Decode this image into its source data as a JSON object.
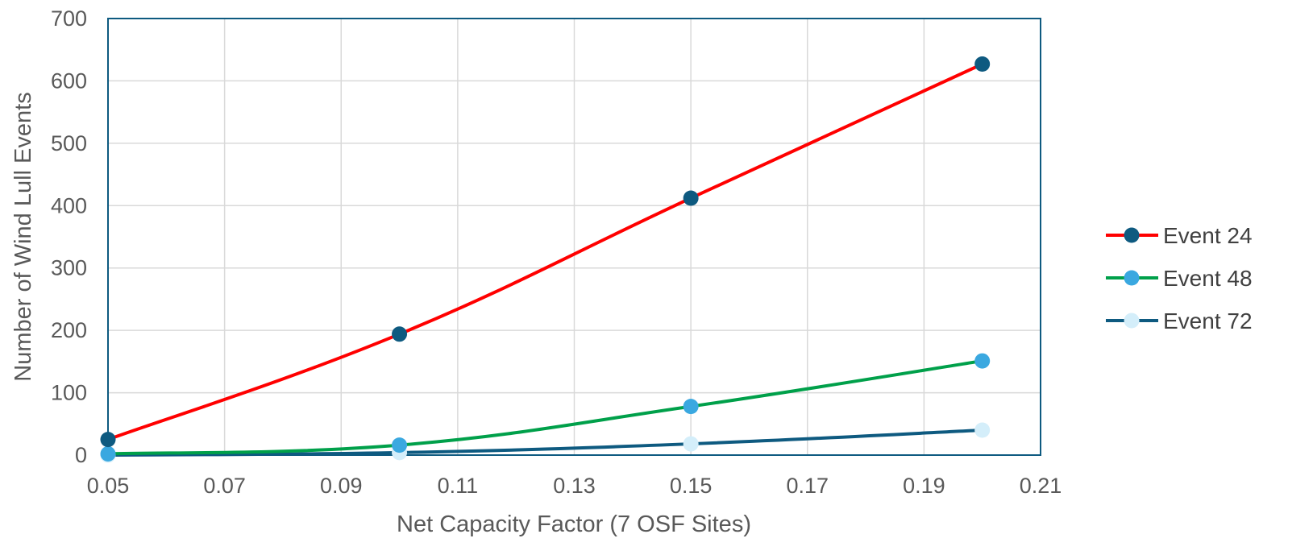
{
  "chart_data": {
    "type": "line",
    "title": "",
    "xlabel": "Net Capacity Factor (7 OSF Sites)",
    "ylabel": "Number of Wind Lull Events",
    "xlim": [
      0.05,
      0.21
    ],
    "ylim": [
      0,
      700
    ],
    "x_ticks": [
      "0.05",
      "0.07",
      "0.09",
      "0.11",
      "0.13",
      "0.15",
      "0.17",
      "0.19",
      "0.21"
    ],
    "y_ticks": [
      "0",
      "100",
      "200",
      "300",
      "400",
      "500",
      "600",
      "700"
    ],
    "grid": true,
    "legend_position": "right",
    "x": [
      0.05,
      0.1,
      0.15,
      0.2
    ],
    "series": [
      {
        "name": "Event 24",
        "values": [
          25,
          194,
          412,
          627
        ],
        "line_color": "#ff0000",
        "marker_color": "#0e5a80"
      },
      {
        "name": "Event 48",
        "values": [
          2,
          16,
          78,
          151
        ],
        "line_color": "#00a04a",
        "marker_color": "#3aa8e0"
      },
      {
        "name": "Event 72",
        "values": [
          0,
          4,
          18,
          40
        ],
        "line_color": "#0e5a80",
        "marker_color": "#d4eefa"
      }
    ]
  }
}
